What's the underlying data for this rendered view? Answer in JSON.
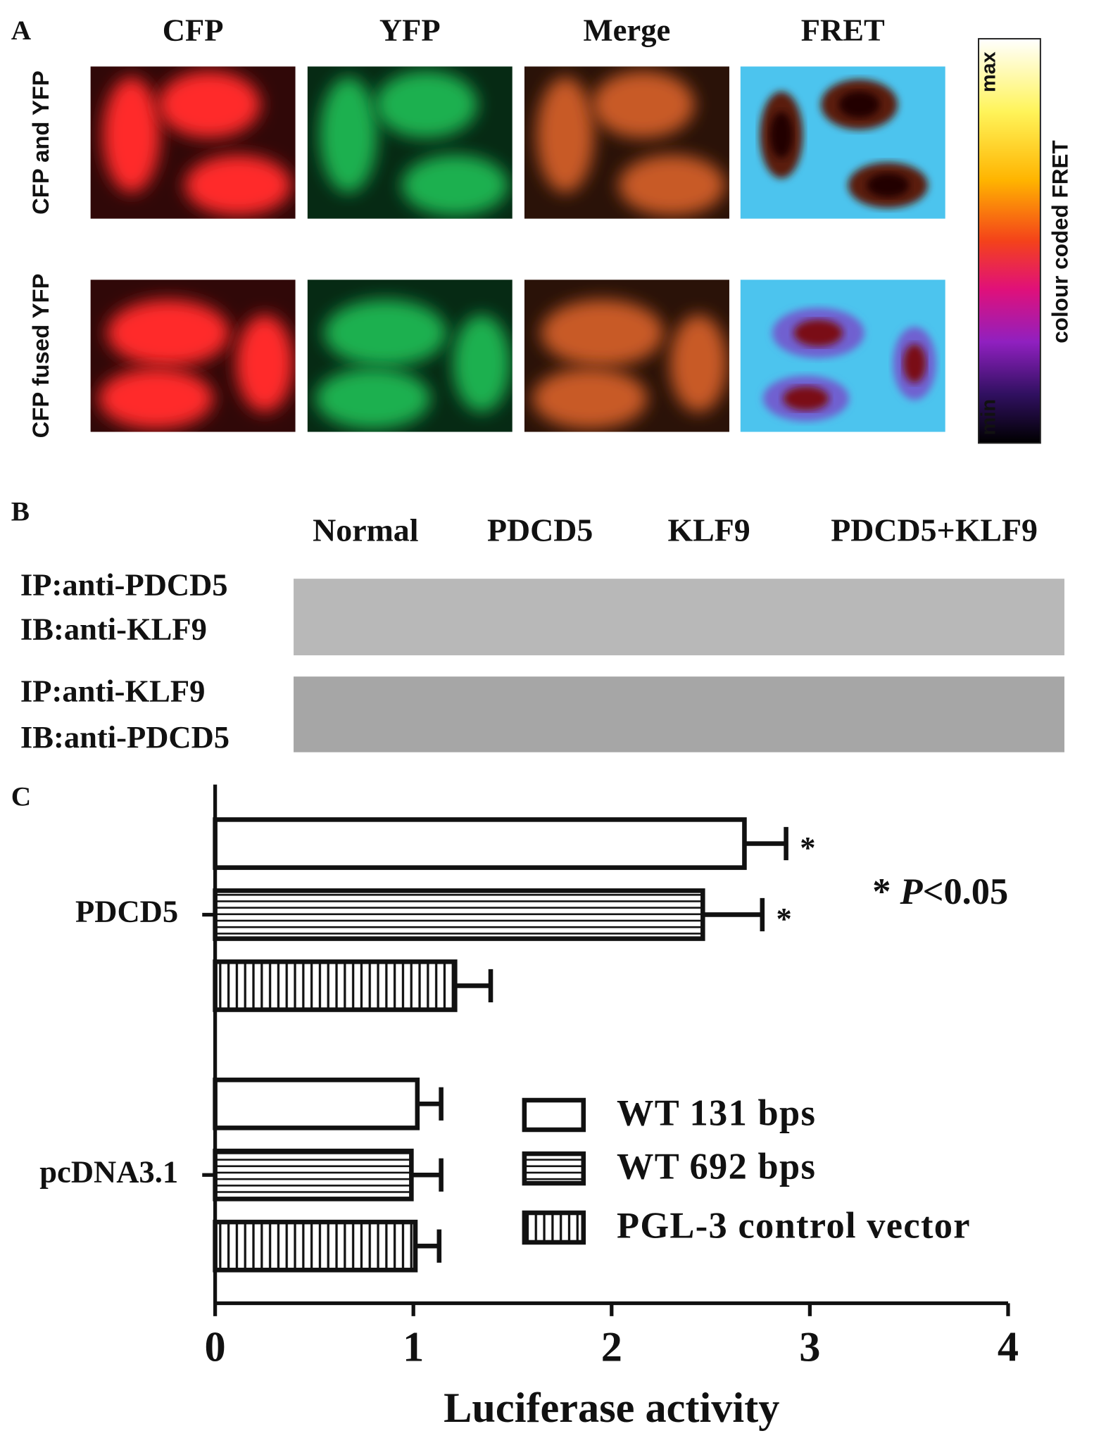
{
  "panel_a": {
    "label": "A",
    "columns": [
      "CFP",
      "YFP",
      "Merge",
      "FRET"
    ],
    "rows": [
      "CFP and YFP",
      "CFP fused YFP"
    ],
    "colorbar": {
      "label": "colour coded FRET",
      "max": "max",
      "min": "min"
    }
  },
  "panel_b": {
    "label": "B",
    "columns": [
      "Normal",
      "PDCD5",
      "KLF9",
      "PDCD5+KLF9"
    ],
    "rows": [
      [
        "IP:anti-PDCD5",
        "IB:anti-KLF9"
      ],
      [
        "IP:anti-KLF9",
        "IB:anti-PDCD5"
      ]
    ]
  },
  "panel_c": {
    "label": "C"
  },
  "chart_data": {
    "type": "hbar",
    "xlabel": "Luciferase activity",
    "categories": [
      "PDCD5",
      "pcDNA3.1"
    ],
    "series": [
      {
        "name": "WT 131 bps",
        "pattern": "plain",
        "values": [
          2.67,
          1.02
        ],
        "errors": [
          0.21,
          0.12
        ],
        "significance": [
          "*",
          null
        ]
      },
      {
        "name": "WT 692 bps",
        "pattern": "horizontal",
        "values": [
          2.46,
          0.99
        ],
        "errors": [
          0.3,
          0.15
        ],
        "significance": [
          "*",
          null
        ]
      },
      {
        "name": "PGL-3 control vector",
        "pattern": "vertical",
        "values": [
          1.21,
          1.01
        ],
        "errors": [
          0.18,
          0.12
        ],
        "significance": [
          null,
          null
        ]
      }
    ],
    "xlim": [
      0,
      4
    ],
    "xticks": [
      0,
      1,
      2,
      3,
      4
    ],
    "annotation": [
      "* ",
      "P",
      "<0.05"
    ]
  }
}
